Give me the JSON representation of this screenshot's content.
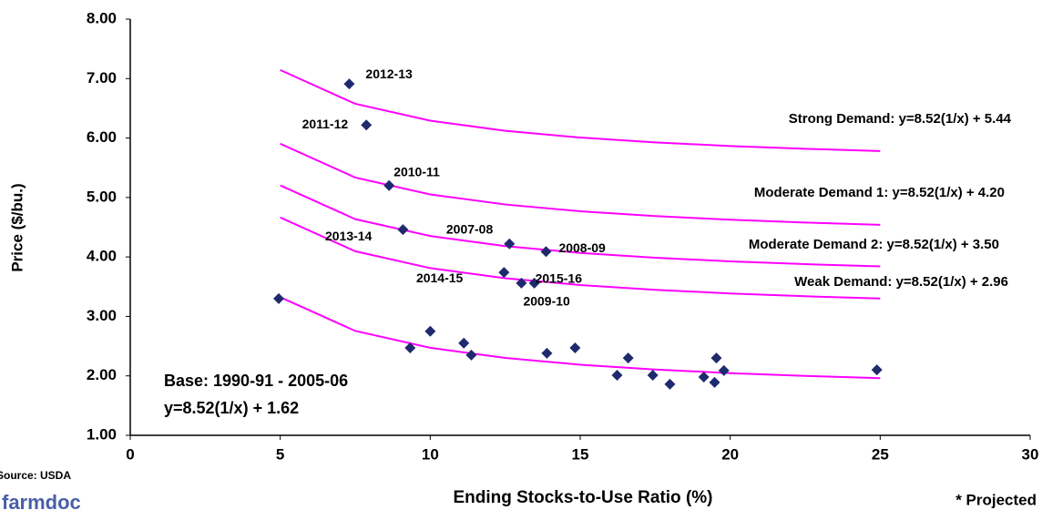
{
  "chart_data": {
    "type": "scatter",
    "xlabel": "Ending Stocks-to-Use Ratio (%)",
    "ylabel": "Price ($/bu.)",
    "xlim": [
      0,
      30
    ],
    "xticks": [
      0,
      5,
      10,
      15,
      20,
      25,
      30
    ],
    "ylim": [
      1,
      8
    ],
    "yticks": [
      {
        "value": 1,
        "label": "1.00"
      },
      {
        "value": 2,
        "label": "2.00"
      },
      {
        "value": 3,
        "label": "3.00"
      },
      {
        "value": 4,
        "label": "4.00"
      },
      {
        "value": 5,
        "label": "5.00"
      },
      {
        "value": 6,
        "label": "6.00"
      },
      {
        "value": 7,
        "label": "7.00"
      },
      {
        "value": 8,
        "label": "8.00"
      }
    ],
    "line_color": "#ff00ff",
    "marker_color": "#1f2a6e",
    "lines": [
      {
        "label": [
          "Strong Demand: y=8.52(1/x)  + 5.44"
        ],
        "x": [
          5,
          7.5,
          10,
          12.5,
          15,
          17.5,
          20,
          22.5,
          25
        ],
        "values": [
          7.144,
          6.576,
          6.292,
          6.122,
          6.008,
          5.927,
          5.866,
          5.819,
          5.781
        ]
      },
      {
        "label": [
          "Moderate Demand 1: y=8.52(1/x)  + 4.20"
        ],
        "x": [
          5,
          7.5,
          10,
          12.5,
          15,
          17.5,
          20,
          22.5,
          25
        ],
        "values": [
          5.904,
          5.336,
          5.052,
          4.882,
          4.768,
          4.687,
          4.626,
          4.579,
          4.541
        ]
      },
      {
        "label": [
          "Moderate Demand 2: y=8.52(1/x)  + 3.50"
        ],
        "x": [
          5,
          7.5,
          10,
          12.5,
          15,
          17.5,
          20,
          22.5,
          25
        ],
        "values": [
          5.204,
          4.636,
          4.352,
          4.182,
          4.068,
          3.987,
          3.926,
          3.879,
          3.841
        ]
      },
      {
        "label": [
          "Weak Demand: y=8.52(1/x)  + 2.96"
        ],
        "x": [
          5,
          7.5,
          10,
          12.5,
          15,
          17.5,
          20,
          22.5,
          25
        ],
        "values": [
          4.664,
          4.096,
          3.812,
          3.642,
          3.528,
          3.447,
          3.386,
          3.339,
          3.301
        ]
      },
      {
        "label": [
          "Base: 1990-91 - 2005-06",
          "y=8.52(1/x) + 1.62"
        ],
        "x": [
          5,
          7.5,
          10,
          12.5,
          15,
          17.5,
          20,
          22.5,
          25
        ],
        "values": [
          3.324,
          2.756,
          2.472,
          2.302,
          2.188,
          2.107,
          2.046,
          1.999,
          1.961
        ]
      }
    ],
    "labeled_points": {
      "labels": [
        "2012-13",
        "2011-12",
        "2010-11",
        "2013-14",
        "2007-08",
        "2008-09",
        "2014-15",
        "2015-16",
        "2009-10"
      ],
      "x": [
        7.3,
        7.87,
        8.63,
        9.09,
        12.64,
        13.86,
        12.46,
        13.47,
        13.04
      ],
      "values": [
        6.91,
        6.22,
        5.2,
        4.46,
        4.22,
        4.09,
        3.74,
        3.56,
        3.56
      ]
    },
    "points": {
      "x": [
        4.95,
        9.33,
        10.0,
        11.12,
        11.37,
        13.89,
        14.83,
        16.23,
        16.6,
        17.42,
        17.99,
        19.12,
        19.48,
        19.54,
        19.79,
        24.89
      ],
      "values": [
        3.3,
        2.47,
        2.75,
        2.55,
        2.35,
        2.38,
        2.47,
        2.01,
        2.3,
        2.01,
        1.86,
        1.98,
        1.89,
        2.3,
        2.09,
        2.1
      ]
    },
    "source": "Source: USDA",
    "logo": "farmdoc",
    "note": "* Projected"
  }
}
